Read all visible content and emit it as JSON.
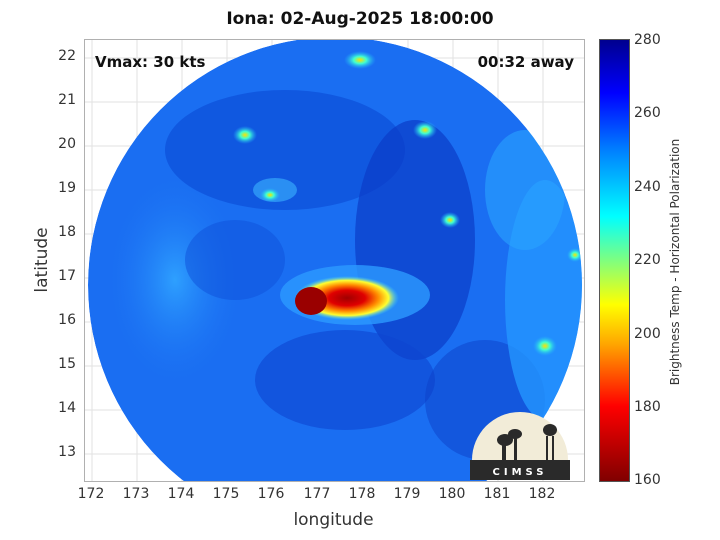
{
  "title": "Iona: 02-Aug-2025 18:00:00",
  "vmax_text": "Vmax: 30 kts",
  "time_text": "00:32 away",
  "xlabel": "longitude",
  "ylabel": "latitude",
  "x_ticks": [
    "172",
    "173",
    "174",
    "175",
    "176",
    "177",
    "178",
    "179",
    "180",
    "181",
    "182"
  ],
  "y_ticks": [
    "22",
    "21",
    "20",
    "19",
    "18",
    "17",
    "16",
    "15",
    "14",
    "13"
  ],
  "colorbar": {
    "label": "Brightness Temp - Horizontal Polarization",
    "ticks": [
      "280",
      "260",
      "240",
      "220",
      "200",
      "180",
      "160"
    ]
  },
  "logo_text": "CIMSS",
  "colors": {
    "background_blue": "#1a6ef2",
    "deep_blue": "#0a2fc4",
    "cyan": "#24c8ff",
    "hot_red": "#d00000"
  }
}
